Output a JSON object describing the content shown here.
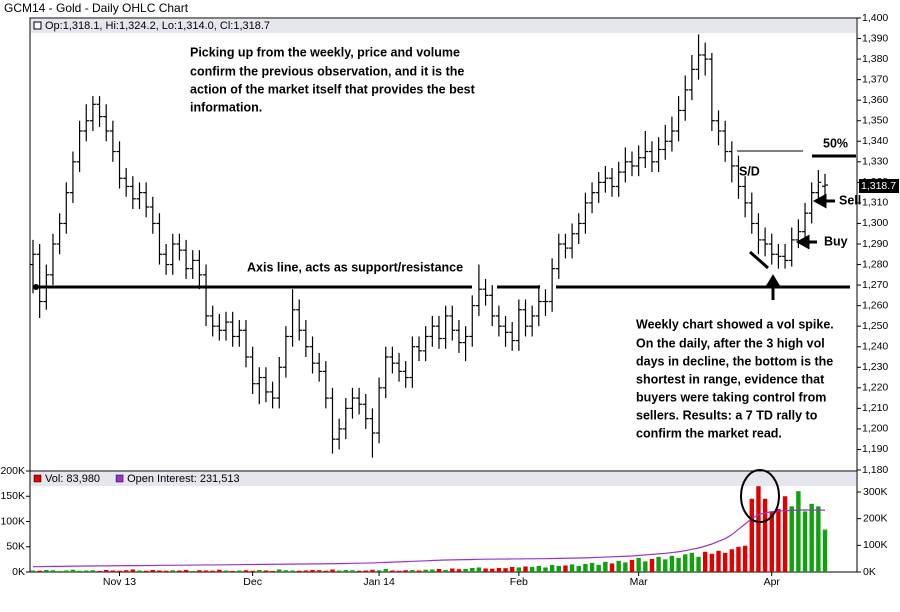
{
  "chart_data": [
    {
      "type": "ohlc",
      "title": "GCM14 - Gold - Daily OHLC Chart",
      "header": "Op:1,318.1, Hi:1,324.2, Lo:1,314.0, Cl:1,318.7",
      "last_label": "1,318.7",
      "color": "#000000",
      "open": [
        1280,
        1285,
        1262,
        1275,
        1290,
        1300,
        1315,
        1330,
        1345,
        1350,
        1358,
        1352,
        1345,
        1335,
        1322,
        1318,
        1312,
        1315,
        1308,
        1300,
        1285,
        1280,
        1290,
        1287,
        1278,
        1282,
        1275,
        1255,
        1250,
        1248,
        1252,
        1245,
        1248,
        1235,
        1222,
        1225,
        1218,
        1215,
        1230,
        1245,
        1258,
        1248,
        1240,
        1232,
        1228,
        1215,
        1195,
        1200,
        1210,
        1215,
        1212,
        1205,
        1198,
        1220,
        1235,
        1232,
        1228,
        1225,
        1240,
        1238,
        1245,
        1250,
        1244,
        1255,
        1248,
        1242,
        1245,
        1260,
        1268,
        1265,
        1255,
        1250,
        1247,
        1243,
        1258,
        1250,
        1255,
        1262,
        1262,
        1278,
        1290,
        1288,
        1295,
        1300,
        1310,
        1315,
        1320,
        1322,
        1318,
        1325,
        1330,
        1328,
        1332,
        1335,
        1330,
        1336,
        1340,
        1345,
        1355,
        1365,
        1375,
        1382,
        1380,
        1350,
        1345,
        1335,
        1328,
        1318,
        1310,
        1300,
        1292,
        1290,
        1285,
        1284,
        1282,
        1292,
        1296,
        1305,
        1315,
        1318.1
      ],
      "high": [
        1292,
        1290,
        1280,
        1295,
        1305,
        1320,
        1335,
        1350,
        1358,
        1362,
        1362,
        1358,
        1350,
        1340,
        1327,
        1323,
        1320,
        1320,
        1313,
        1305,
        1290,
        1295,
        1295,
        1292,
        1287,
        1287,
        1280,
        1260,
        1256,
        1257,
        1257,
        1253,
        1253,
        1240,
        1230,
        1230,
        1223,
        1235,
        1250,
        1268,
        1263,
        1253,
        1245,
        1237,
        1233,
        1220,
        1205,
        1215,
        1220,
        1220,
        1217,
        1210,
        1225,
        1240,
        1240,
        1237,
        1233,
        1245,
        1245,
        1250,
        1255,
        1255,
        1260,
        1260,
        1253,
        1250,
        1265,
        1280,
        1273,
        1270,
        1260,
        1255,
        1252,
        1263,
        1263,
        1260,
        1270,
        1268,
        1283,
        1295,
        1295,
        1300,
        1305,
        1315,
        1320,
        1325,
        1328,
        1327,
        1330,
        1337,
        1335,
        1338,
        1345,
        1340,
        1342,
        1348,
        1352,
        1362,
        1372,
        1382,
        1392,
        1388,
        1383,
        1355,
        1350,
        1340,
        1333,
        1323,
        1315,
        1305,
        1298,
        1295,
        1290,
        1290,
        1298,
        1302,
        1310,
        1320,
        1326,
        1324.2
      ],
      "low": [
        1266,
        1254,
        1258,
        1270,
        1285,
        1295,
        1310,
        1325,
        1340,
        1345,
        1347,
        1340,
        1330,
        1317,
        1313,
        1307,
        1307,
        1303,
        1295,
        1280,
        1275,
        1275,
        1282,
        1273,
        1273,
        1268,
        1250,
        1245,
        1243,
        1243,
        1240,
        1240,
        1230,
        1217,
        1212,
        1213,
        1210,
        1210,
        1225,
        1240,
        1243,
        1235,
        1227,
        1223,
        1210,
        1188,
        1190,
        1195,
        1205,
        1207,
        1200,
        1186,
        1193,
        1215,
        1227,
        1223,
        1220,
        1220,
        1233,
        1233,
        1240,
        1239,
        1239,
        1243,
        1237,
        1233,
        1240,
        1255,
        1260,
        1250,
        1245,
        1240,
        1238,
        1238,
        1245,
        1245,
        1250,
        1255,
        1257,
        1273,
        1283,
        1283,
        1290,
        1295,
        1305,
        1310,
        1315,
        1313,
        1313,
        1320,
        1323,
        1323,
        1327,
        1325,
        1325,
        1331,
        1335,
        1340,
        1350,
        1360,
        1370,
        1372,
        1345,
        1338,
        1330,
        1320,
        1312,
        1303,
        1295,
        1285,
        1284,
        1280,
        1278,
        1278,
        1279,
        1288,
        1292,
        1300,
        1310,
        1314.0
      ],
      "close": [
        1285,
        1262,
        1275,
        1290,
        1300,
        1315,
        1330,
        1345,
        1350,
        1358,
        1352,
        1345,
        1335,
        1322,
        1318,
        1312,
        1315,
        1308,
        1300,
        1285,
        1280,
        1290,
        1287,
        1278,
        1282,
        1275,
        1255,
        1250,
        1248,
        1252,
        1245,
        1248,
        1235,
        1222,
        1225,
        1218,
        1215,
        1230,
        1245,
        1258,
        1248,
        1240,
        1232,
        1228,
        1215,
        1195,
        1200,
        1210,
        1215,
        1212,
        1205,
        1198,
        1220,
        1235,
        1232,
        1228,
        1225,
        1240,
        1238,
        1245,
        1250,
        1244,
        1255,
        1248,
        1242,
        1245,
        1260,
        1268,
        1265,
        1255,
        1250,
        1247,
        1243,
        1258,
        1250,
        1255,
        1262,
        1262,
        1278,
        1290,
        1288,
        1295,
        1300,
        1310,
        1315,
        1320,
        1322,
        1318,
        1325,
        1330,
        1328,
        1332,
        1335,
        1330,
        1336,
        1340,
        1345,
        1355,
        1365,
        1375,
        1382,
        1380,
        1350,
        1345,
        1335,
        1328,
        1318,
        1310,
        1300,
        1292,
        1290,
        1285,
        1284,
        1282,
        1292,
        1296,
        1305,
        1315,
        1320,
        1318.7
      ],
      "ylim": [
        1180,
        1400
      ],
      "yticks": [
        {
          "value": 1180,
          "label": "1,180"
        },
        {
          "value": 1190,
          "label": "1,190"
        },
        {
          "value": 1200,
          "label": "1,200"
        },
        {
          "value": 1210,
          "label": "1,210"
        },
        {
          "value": 1220,
          "label": "1,220"
        },
        {
          "value": 1230,
          "label": "1,230"
        },
        {
          "value": 1240,
          "label": "1,240"
        },
        {
          "value": 1250,
          "label": "1,250"
        },
        {
          "value": 1260,
          "label": "1,260"
        },
        {
          "value": 1270,
          "label": "1,270"
        },
        {
          "value": 1280,
          "label": "1,280"
        },
        {
          "value": 1290,
          "label": "1,290"
        },
        {
          "value": 1300,
          "label": "1,300"
        },
        {
          "value": 1310,
          "label": "1,310"
        },
        {
          "value": 1320,
          "label": "1,320"
        },
        {
          "value": 1330,
          "label": "1,330"
        },
        {
          "value": 1340,
          "label": "1,340"
        },
        {
          "value": 1350,
          "label": "1,350"
        },
        {
          "value": 1360,
          "label": "1,360"
        },
        {
          "value": 1370,
          "label": "1,370"
        },
        {
          "value": 1380,
          "label": "1,380"
        },
        {
          "value": 1390,
          "label": "1,390"
        },
        {
          "value": 1400,
          "label": "1,400"
        }
      ],
      "annotations": {
        "intro": [
          "Picking up from the weekly, price and volume",
          "confirm the previous observation, and it is the",
          "action of the market itself that provides the best",
          "information."
        ],
        "axis_line": "Axis line, acts as support/resistance",
        "sd": "S/D",
        "fifty": "50%",
        "sell": "Sell",
        "buy": "Buy",
        "summary": [
          "Weekly chart showed a vol spike.",
          "On the daily, after the 3 high vol",
          "days in decline, the bottom is the",
          "shortest in range, evidence that",
          "buyers were taking control from",
          "sellers.  Results: a 7 TD rally to",
          "confirm the market read."
        ]
      }
    },
    {
      "type": "bar",
      "categories": [
        null,
        null,
        null,
        null,
        null,
        null,
        null,
        null,
        null,
        null,
        null,
        null,
        null,
        "Nov 13",
        null,
        null,
        null,
        null,
        null,
        null,
        null,
        null,
        null,
        null,
        null,
        null,
        null,
        null,
        null,
        null,
        null,
        null,
        null,
        "Dec",
        null,
        null,
        null,
        null,
        null,
        null,
        null,
        null,
        null,
        null,
        null,
        null,
        null,
        null,
        null,
        null,
        null,
        null,
        "Jan 14",
        null,
        null,
        null,
        null,
        null,
        null,
        null,
        null,
        null,
        null,
        null,
        null,
        null,
        null,
        null,
        null,
        null,
        null,
        null,
        null,
        "Feb",
        null,
        null,
        null,
        null,
        null,
        null,
        null,
        null,
        null,
        null,
        null,
        null,
        null,
        null,
        null,
        null,
        null,
        "Mar",
        null,
        null,
        null,
        null,
        null,
        null,
        null,
        null,
        null,
        null,
        null,
        null,
        null,
        null,
        null,
        null,
        null,
        null,
        null,
        "Apr",
        null,
        null,
        null,
        null,
        null,
        null,
        null,
        null
      ],
      "series": [
        {
          "name": "Vol: 83,980",
          "color": "#e00000",
          "up_color": "#10a010",
          "down_color": "#e00000",
          "values": [
            3000,
            2500,
            4000,
            3500,
            2000,
            3000,
            4500,
            2500,
            3000,
            3500,
            2000,
            4000,
            3000,
            2500,
            3500,
            5000,
            3000,
            2500,
            4000,
            3000,
            2500,
            3500,
            3000,
            4000,
            2000,
            3500,
            3000,
            2500,
            4500,
            3000,
            2000,
            3000,
            3500,
            2500,
            4000,
            3000,
            2000,
            5000,
            3500,
            3000,
            2500,
            3000,
            4000,
            3500,
            2500,
            5000,
            3000,
            4000,
            3500,
            2500,
            3000,
            4500,
            3500,
            6000,
            3000,
            2500,
            3500,
            4000,
            3000,
            4500,
            5000,
            6000,
            4000,
            7000,
            5500,
            6000,
            8000,
            9000,
            7000,
            6500,
            8000,
            7500,
            10000,
            9000,
            11000,
            10000,
            12000,
            9000,
            14000,
            12000,
            13000,
            15000,
            12000,
            16000,
            18000,
            14000,
            20000,
            17000,
            22000,
            19000,
            24000,
            28000,
            21000,
            26000,
            30000,
            25000,
            32000,
            28000,
            35000,
            38000,
            30000,
            40000,
            36000,
            42000,
            38000,
            45000,
            50000,
            52000,
            145000,
            170000,
            145000,
            120000,
            125000,
            150000,
            130000,
            160000,
            120000,
            135000,
            130000,
            83980
          ]
        },
        {
          "name": "Open Interest: 231,513",
          "color": "#9933cc",
          "axis": "y2",
          "values": [
            20000,
            20000,
            20500,
            21000,
            21000,
            21500,
            22000,
            22000,
            22500,
            22500,
            23000,
            23000,
            23500,
            23500,
            24000,
            24000,
            24000,
            24500,
            24500,
            25000,
            25000,
            25000,
            25500,
            25500,
            26000,
            26000,
            26500,
            26500,
            27000,
            27000,
            27500,
            27500,
            28000,
            28000,
            28500,
            28500,
            29000,
            29000,
            29500,
            29500,
            30000,
            30000,
            30500,
            30500,
            31000,
            31000,
            31500,
            32000,
            32500,
            33000,
            33500,
            34000,
            35000,
            36000,
            37000,
            38000,
            39000,
            40000,
            41000,
            42000,
            43000,
            44000,
            45000,
            45500,
            46000,
            46500,
            47000,
            47500,
            48000,
            48000,
            48500,
            48500,
            49000,
            49000,
            49500,
            49500,
            50000,
            50000,
            50500,
            51000,
            51500,
            52000,
            52500,
            53000,
            54000,
            55000,
            56000,
            57000,
            58000,
            59000,
            60000,
            62000,
            64000,
            66000,
            68000,
            70000,
            73000,
            76000,
            80000,
            85000,
            90000,
            97000,
            105000,
            115000,
            125000,
            140000,
            160000,
            180000,
            200000,
            215000,
            222000,
            226000,
            228000,
            230000,
            231000,
            232000,
            233000,
            232000,
            232000,
            231513
          ]
        }
      ],
      "ylim": [
        0,
        200000
      ],
      "yticks": [
        {
          "value": 0,
          "label": "0K"
        },
        {
          "value": 50000,
          "label": "50K"
        },
        {
          "value": 100000,
          "label": "100K"
        },
        {
          "value": 150000,
          "label": "150K"
        },
        {
          "value": 200000,
          "label": "200K"
        }
      ],
      "y2lim": [
        0,
        378750
      ],
      "y2ticks": [
        {
          "value": 0,
          "label": "0K"
        },
        {
          "value": 100000,
          "label": "100K"
        },
        {
          "value": 200000,
          "label": "200K"
        },
        {
          "value": 300000,
          "label": "300K"
        }
      ]
    }
  ]
}
